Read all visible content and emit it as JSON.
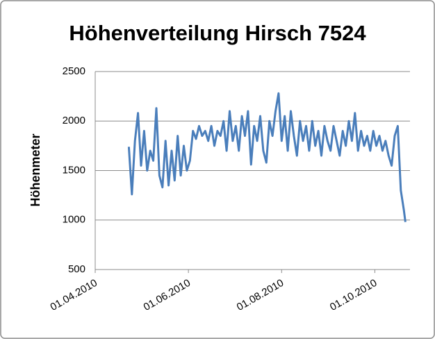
{
  "chart_data": {
    "type": "line",
    "title": "Höhenverteilung Hirsch 7524",
    "y_label": "Höhenmeter",
    "color": "#4a7ebb",
    "grid": true,
    "x": [
      "2010-04-23",
      "2010-04-25",
      "2010-04-27",
      "2010-04-29",
      "2010-05-01",
      "2010-05-03",
      "2010-05-05",
      "2010-05-07",
      "2010-05-09",
      "2010-05-11",
      "2010-05-13",
      "2010-05-15",
      "2010-05-17",
      "2010-05-19",
      "2010-05-21",
      "2010-05-23",
      "2010-05-25",
      "2010-05-27",
      "2010-05-29",
      "2010-05-31",
      "2010-06-02",
      "2010-06-04",
      "2010-06-06",
      "2010-06-08",
      "2010-06-10",
      "2010-06-12",
      "2010-06-14",
      "2010-06-16",
      "2010-06-18",
      "2010-06-20",
      "2010-06-22",
      "2010-06-24",
      "2010-06-26",
      "2010-06-28",
      "2010-06-30",
      "2010-07-02",
      "2010-07-04",
      "2010-07-06",
      "2010-07-08",
      "2010-07-10",
      "2010-07-12",
      "2010-07-14",
      "2010-07-16",
      "2010-07-18",
      "2010-07-20",
      "2010-07-22",
      "2010-07-24",
      "2010-07-26",
      "2010-07-28",
      "2010-07-30",
      "2010-08-01",
      "2010-08-03",
      "2010-08-05",
      "2010-08-07",
      "2010-08-09",
      "2010-08-11",
      "2010-08-13",
      "2010-08-15",
      "2010-08-17",
      "2010-08-19",
      "2010-08-21",
      "2010-08-23",
      "2010-08-25",
      "2010-08-27",
      "2010-08-29",
      "2010-08-31",
      "2010-09-02",
      "2010-09-04",
      "2010-09-06",
      "2010-09-08",
      "2010-09-10",
      "2010-09-12",
      "2010-09-14",
      "2010-09-16",
      "2010-09-18",
      "2010-09-20",
      "2010-09-22",
      "2010-09-24",
      "2010-09-26",
      "2010-09-28",
      "2010-09-30",
      "2010-10-02",
      "2010-10-04",
      "2010-10-06",
      "2010-10-08",
      "2010-10-10",
      "2010-10-12",
      "2010-10-14",
      "2010-10-16",
      "2010-10-18",
      "2010-10-20",
      "2010-10-21"
    ],
    "values": [
      1740,
      1260,
      1800,
      2080,
      1550,
      1900,
      1500,
      1700,
      1600,
      2130,
      1450,
      1330,
      1800,
      1350,
      1700,
      1400,
      1850,
      1450,
      1750,
      1500,
      1600,
      1900,
      1820,
      1950,
      1850,
      1900,
      1800,
      1950,
      1750,
      1900,
      1850,
      2000,
      1700,
      2100,
      1800,
      1950,
      1700,
      2050,
      1850,
      2100,
      1560,
      1950,
      1800,
      2050,
      1700,
      1580,
      2000,
      1850,
      2100,
      2280,
      1800,
      2050,
      1700,
      2100,
      1850,
      1650,
      2000,
      1800,
      1950,
      1700,
      2000,
      1750,
      1900,
      1650,
      1950,
      1800,
      1700,
      1950,
      1800,
      1650,
      1900,
      1750,
      2000,
      1800,
      2080,
      1700,
      1900,
      1750,
      1850,
      1700,
      1900,
      1750,
      1850,
      1700,
      1800,
      1650,
      1550,
      1850,
      1950,
      1300,
      1100,
      980
    ],
    "xlim": [
      "2010-04-01",
      "2010-10-24"
    ],
    "xticks": [
      {
        "value": "2010-04-01",
        "label": "01.04.2010"
      },
      {
        "value": "2010-06-01",
        "label": "01.06.2010"
      },
      {
        "value": "2010-08-01",
        "label": "01.08.2010"
      },
      {
        "value": "2010-10-01",
        "label": "01.10.2010"
      }
    ],
    "ylim": [
      500,
      2500
    ],
    "yticks": [
      500,
      1000,
      1500,
      2000,
      2500
    ]
  }
}
